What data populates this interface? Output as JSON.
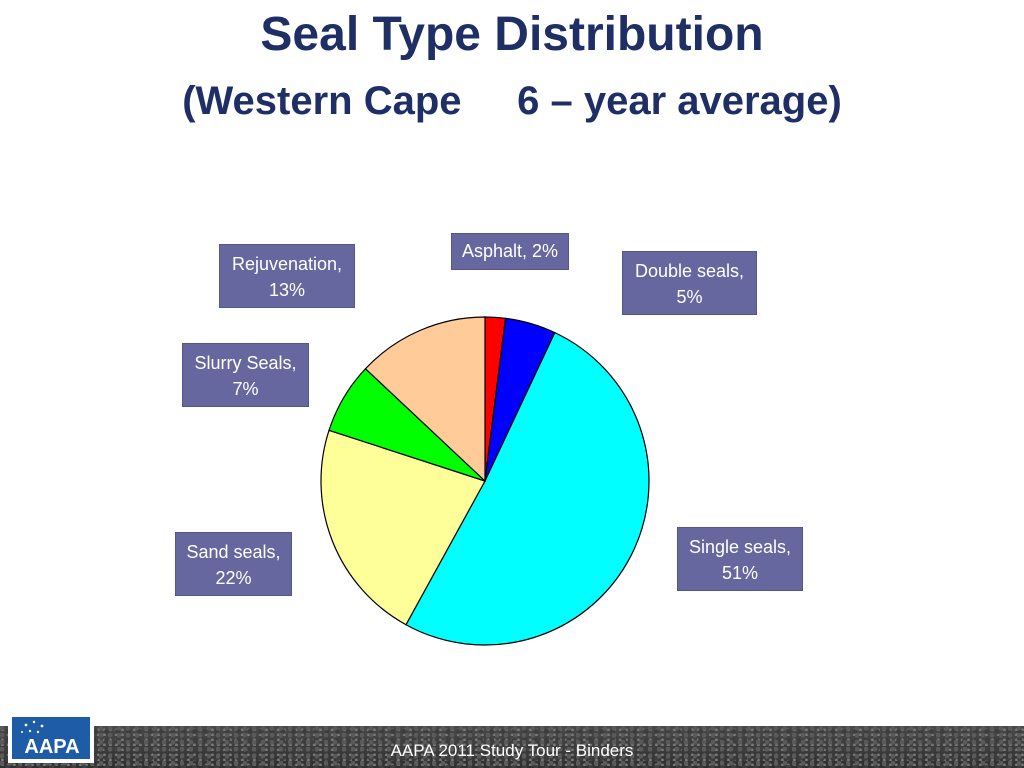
{
  "title": "Seal Type Distribution",
  "subtitle": "(Western Cape     6 – year average)",
  "footer": "AAPA 2011 Study Tour - Binders",
  "logo_text": "AAPA",
  "colors": {
    "title": "#1f2f66",
    "label_box": "#66679e"
  },
  "chart_data": {
    "type": "pie",
    "start": "12 o'clock",
    "direction": "clockwise",
    "slices": [
      {
        "name": "Asphalt",
        "value": 2,
        "color": "#ff0000",
        "label": "Asphalt, 2%"
      },
      {
        "name": "Double seals",
        "value": 5,
        "color": "#0000ff",
        "label_line1": "Double seals,",
        "label_line2": "5%"
      },
      {
        "name": "Single seals",
        "value": 51,
        "color": "#00ffff",
        "label_line1": "Single seals,",
        "label_line2": "51%"
      },
      {
        "name": "Sand seals",
        "value": 22,
        "color": "#ffff99",
        "label_line1": "Sand seals,",
        "label_line2": "22%"
      },
      {
        "name": "Slurry Seals",
        "value": 7,
        "color": "#00ff00",
        "label_line1": "Slurry Seals,",
        "label_line2": "7%"
      },
      {
        "name": "Rejuvenation",
        "value": 13,
        "color": "#ffcc99",
        "label_line1": "Rejuvenation,",
        "label_line2": "13%"
      }
    ]
  }
}
